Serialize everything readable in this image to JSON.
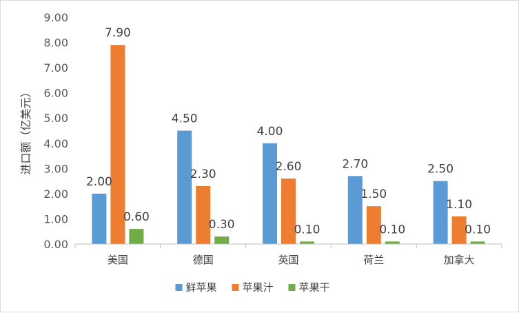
{
  "chart_data": {
    "type": "bar",
    "categories": [
      "美国",
      "德国",
      "英国",
      "荷兰",
      "加拿大"
    ],
    "series": [
      {
        "name": "鲜苹果",
        "color": "#5b9bd5",
        "values": [
          2.0,
          4.5,
          4.0,
          2.7,
          2.5
        ],
        "labels": [
          "2.00",
          "4.50",
          "4.00",
          "2.70",
          "2.50"
        ]
      },
      {
        "name": "苹果汁",
        "color": "#ed7d31",
        "values": [
          7.9,
          2.3,
          2.6,
          1.5,
          1.1
        ],
        "labels": [
          "7.90",
          "2.30",
          "2.60",
          "1.50",
          "1.10"
        ]
      },
      {
        "name": "苹果干",
        "color": "#70ad47",
        "values": [
          0.6,
          0.3,
          0.1,
          0.1,
          0.1
        ],
        "labels": [
          "0.60",
          "0.30",
          "0.10",
          "0.10",
          "0.10"
        ]
      }
    ],
    "ylabel": "进口额（亿美元）",
    "ylim": [
      0,
      9
    ],
    "yticks": [
      "0.00",
      "1.00",
      "2.00",
      "3.00",
      "4.00",
      "5.00",
      "6.00",
      "7.00",
      "8.00",
      "9.00"
    ],
    "grid": false,
    "legend_position": "bottom"
  }
}
